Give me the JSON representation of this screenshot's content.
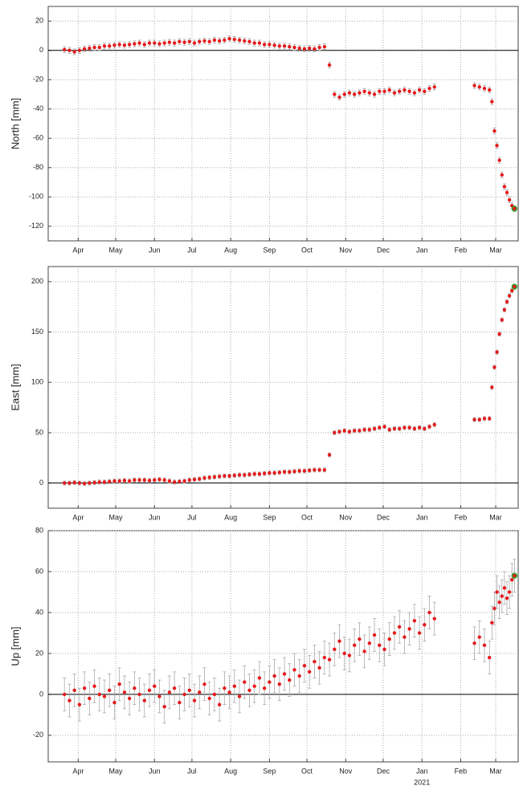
{
  "chart_data": [
    {
      "type": "scatter",
      "ylabel": "North [mm]",
      "color": "#e41a1c",
      "error_color": "#aaaaaa",
      "highlight_color": "#33aa33",
      "grid": true,
      "xlim": [
        7,
        383
      ],
      "ylim": [
        -130,
        30
      ],
      "xticks": [
        {
          "value": 31,
          "label": "Apr"
        },
        {
          "value": 61,
          "label": "May"
        },
        {
          "value": 92,
          "label": "Jun"
        },
        {
          "value": 122,
          "label": "Jul"
        },
        {
          "value": 153,
          "label": "Aug"
        },
        {
          "value": 184,
          "label": "Sep"
        },
        {
          "value": 214,
          "label": "Oct"
        },
        {
          "value": 245,
          "label": "Nov"
        },
        {
          "value": 275,
          "label": "Dec"
        },
        {
          "value": 306,
          "label": "Jan"
        },
        {
          "value": 337,
          "label": "Feb"
        },
        {
          "value": 365,
          "label": "Mar"
        }
      ],
      "yticks": [
        -120,
        -100,
        -80,
        -60,
        -40,
        -20,
        0,
        20
      ],
      "error": 2,
      "x": [
        20,
        24,
        28,
        32,
        36,
        40,
        44,
        48,
        52,
        56,
        60,
        64,
        68,
        72,
        76,
        80,
        84,
        88,
        92,
        96,
        100,
        104,
        108,
        112,
        116,
        120,
        124,
        128,
        132,
        136,
        140,
        144,
        148,
        152,
        156,
        160,
        164,
        168,
        172,
        176,
        180,
        184,
        188,
        192,
        196,
        200,
        204,
        208,
        212,
        216,
        220,
        224,
        228,
        232,
        236,
        240,
        244,
        248,
        252,
        256,
        260,
        264,
        268,
        272,
        276,
        280,
        284,
        288,
        292,
        296,
        300,
        304,
        308,
        312,
        316,
        348,
        352,
        356,
        360,
        362,
        364,
        366,
        368,
        370,
        372,
        374,
        376,
        378,
        380
      ],
      "values": [
        0.5,
        0,
        -1,
        0,
        1,
        1.5,
        2,
        2,
        3,
        3,
        3.5,
        4,
        3.5,
        4,
        4.5,
        5,
        4,
        5,
        5,
        4.5,
        5,
        5.5,
        5,
        6,
        5.5,
        6,
        5,
        6,
        6.5,
        6,
        7,
        6.5,
        7,
        8,
        7.5,
        7,
        6.5,
        6,
        5,
        5,
        4,
        4,
        3.5,
        3,
        3,
        2.5,
        2,
        1.5,
        1,
        1.5,
        1,
        2,
        2.5,
        -10,
        -30,
        -32,
        -30,
        -29,
        -30,
        -29,
        -28,
        -29,
        -30,
        -28,
        -28,
        -27,
        -29,
        -28,
        -27,
        -28,
        -29,
        -27,
        -28,
        -26,
        -25,
        -24,
        -25,
        -26,
        -27,
        -35,
        -55,
        -65,
        -75,
        -85,
        -93,
        -97,
        -102,
        -106,
        -108
      ]
    },
    {
      "type": "scatter",
      "ylabel": "East [mm]",
      "color": "#e41a1c",
      "error_color": "#aaaaaa",
      "highlight_color": "#33aa33",
      "grid": true,
      "xlim": [
        7,
        383
      ],
      "ylim": [
        -25,
        215
      ],
      "xticks": [
        {
          "value": 31,
          "label": "Apr"
        },
        {
          "value": 61,
          "label": "May"
        },
        {
          "value": 92,
          "label": "Jun"
        },
        {
          "value": 122,
          "label": "Jul"
        },
        {
          "value": 153,
          "label": "Aug"
        },
        {
          "value": 184,
          "label": "Sep"
        },
        {
          "value": 214,
          "label": "Oct"
        },
        {
          "value": 245,
          "label": "Nov"
        },
        {
          "value": 275,
          "label": "Dec"
        },
        {
          "value": 306,
          "label": "Jan"
        },
        {
          "value": 337,
          "label": "Feb"
        },
        {
          "value": 365,
          "label": "Mar"
        }
      ],
      "yticks": [
        0,
        50,
        100,
        150,
        200
      ],
      "error": 2,
      "x": [
        20,
        24,
        28,
        32,
        36,
        40,
        44,
        48,
        52,
        56,
        60,
        64,
        68,
        72,
        76,
        80,
        84,
        88,
        92,
        96,
        100,
        104,
        108,
        112,
        116,
        120,
        124,
        128,
        132,
        136,
        140,
        144,
        148,
        152,
        156,
        160,
        164,
        168,
        172,
        176,
        180,
        184,
        188,
        192,
        196,
        200,
        204,
        208,
        212,
        216,
        220,
        224,
        228,
        232,
        236,
        240,
        244,
        248,
        252,
        256,
        260,
        264,
        268,
        272,
        276,
        280,
        284,
        288,
        292,
        296,
        300,
        304,
        308,
        312,
        316,
        348,
        352,
        356,
        360,
        362,
        364,
        366,
        368,
        370,
        372,
        374,
        376,
        378,
        380
      ],
      "values": [
        0,
        0,
        0.5,
        0,
        -0.5,
        0,
        0.5,
        1,
        1,
        1.5,
        2,
        2,
        2.5,
        2,
        3,
        3,
        3,
        2.5,
        3,
        3.5,
        3,
        2,
        1,
        1.5,
        2,
        3,
        3.5,
        4,
        5,
        5.5,
        6,
        6.5,
        7,
        7,
        7.5,
        8,
        8,
        8.5,
        9,
        9,
        9.5,
        10,
        10,
        10.5,
        11,
        11,
        11.5,
        12,
        12,
        12.5,
        13,
        13,
        13,
        28,
        50,
        51,
        52,
        51,
        52,
        52,
        53,
        53,
        54,
        55,
        56,
        53,
        54,
        54,
        55,
        55,
        54,
        55,
        54,
        56,
        58,
        63,
        63,
        64,
        64,
        95,
        115,
        130,
        148,
        162,
        172,
        180,
        186,
        191,
        195
      ]
    },
    {
      "type": "scatter",
      "ylabel": "Up [mm]",
      "color": "#e41a1c",
      "error_color": "#aaaaaa",
      "highlight_color": "#33aa33",
      "grid": true,
      "xlim": [
        7,
        383
      ],
      "ylim": [
        -33,
        80
      ],
      "xticks": [
        {
          "value": 31,
          "label": "Apr"
        },
        {
          "value": 61,
          "label": "May"
        },
        {
          "value": 92,
          "label": "Jun"
        },
        {
          "value": 122,
          "label": "Jul"
        },
        {
          "value": 153,
          "label": "Aug"
        },
        {
          "value": 184,
          "label": "Sep"
        },
        {
          "value": 214,
          "label": "Oct"
        },
        {
          "value": 245,
          "label": "Nov"
        },
        {
          "value": 275,
          "label": "Dec"
        },
        {
          "value": 306,
          "label": "Jan"
        },
        {
          "value": 337,
          "label": "Feb"
        },
        {
          "value": 365,
          "label": "Mar"
        }
      ],
      "yticks": [
        -20,
        0,
        20,
        40,
        60,
        80
      ],
      "year_label": {
        "value": 306,
        "label": "2021"
      },
      "error": 8,
      "x": [
        20,
        24,
        28,
        32,
        36,
        40,
        44,
        48,
        52,
        56,
        60,
        64,
        68,
        72,
        76,
        80,
        84,
        88,
        92,
        96,
        100,
        104,
        108,
        112,
        116,
        120,
        124,
        128,
        132,
        136,
        140,
        144,
        148,
        152,
        156,
        160,
        164,
        168,
        172,
        176,
        180,
        184,
        188,
        192,
        196,
        200,
        204,
        208,
        212,
        216,
        220,
        224,
        228,
        232,
        236,
        240,
        244,
        248,
        252,
        256,
        260,
        264,
        268,
        272,
        276,
        280,
        284,
        288,
        292,
        296,
        300,
        304,
        308,
        312,
        316,
        348,
        352,
        356,
        360,
        362,
        364,
        366,
        368,
        370,
        372,
        374,
        376,
        378,
        380
      ],
      "values": [
        0,
        -3,
        2,
        -5,
        3,
        -2,
        4,
        0,
        -1,
        2,
        -4,
        5,
        1,
        -2,
        3,
        0,
        -3,
        2,
        4,
        -1,
        -6,
        1,
        3,
        -4,
        0,
        2,
        -3,
        1,
        5,
        -2,
        0,
        -5,
        3,
        1,
        4,
        -1,
        6,
        2,
        4,
        8,
        3,
        6,
        9,
        5,
        10,
        7,
        12,
        9,
        14,
        11,
        16,
        13,
        18,
        17,
        22,
        26,
        20,
        19,
        24,
        27,
        21,
        25,
        29,
        24,
        22,
        27,
        30,
        33,
        28,
        32,
        36,
        30,
        34,
        40,
        37,
        25,
        28,
        24,
        18,
        35,
        42,
        50,
        45,
        48,
        52,
        47,
        50,
        56,
        58
      ]
    }
  ]
}
